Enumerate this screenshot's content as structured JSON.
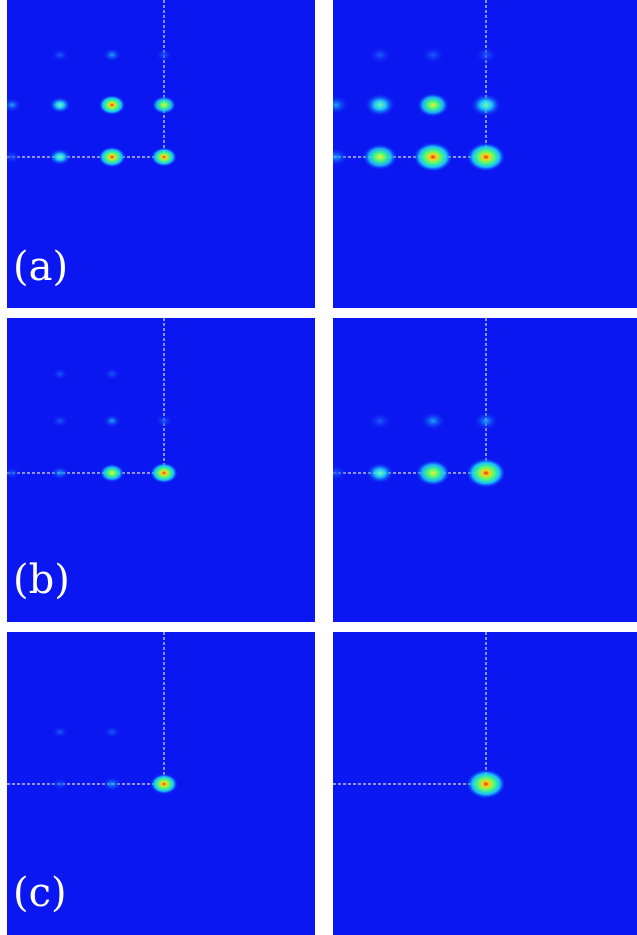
{
  "figure": {
    "background_color": "#0a17f0",
    "guide_line_color": "#e0e0e0",
    "rows": [
      {
        "label": "(a)",
        "left": {
          "spots": [
            {
              "col": 0,
              "row": 0,
              "intensity": 0.22
            },
            {
              "col": 1,
              "row": 0,
              "intensity": 0.28
            },
            {
              "col": 2,
              "row": 0,
              "intensity": 0.15
            },
            {
              "col": -1,
              "row": 1,
              "intensity": 0.3
            },
            {
              "col": 0,
              "row": 1,
              "intensity": 0.5
            },
            {
              "col": 1,
              "row": 1,
              "intensity": 0.92
            },
            {
              "col": 2,
              "row": 1,
              "intensity": 0.7
            },
            {
              "col": -1,
              "row": 2,
              "intensity": 0.2
            },
            {
              "col": 0,
              "row": 2,
              "intensity": 0.55
            },
            {
              "col": 1,
              "row": 2,
              "intensity": 1.0
            },
            {
              "col": 2,
              "row": 2,
              "intensity": 0.85
            }
          ]
        },
        "right": {
          "spots": [
            {
              "col": 0,
              "row": 0,
              "intensity": 0.2
            },
            {
              "col": 1,
              "row": 0,
              "intensity": 0.22
            },
            {
              "col": 2,
              "row": 0,
              "intensity": 0.15
            },
            {
              "col": -1,
              "row": 1,
              "intensity": 0.3
            },
            {
              "col": 0,
              "row": 1,
              "intensity": 0.55
            },
            {
              "col": 1,
              "row": 1,
              "intensity": 0.62
            },
            {
              "col": 2,
              "row": 1,
              "intensity": 0.55
            },
            {
              "col": -1,
              "row": 2,
              "intensity": 0.25
            },
            {
              "col": 0,
              "row": 2,
              "intensity": 0.75
            },
            {
              "col": 1,
              "row": 2,
              "intensity": 1.0
            },
            {
              "col": 2,
              "row": 2,
              "intensity": 0.95
            }
          ]
        }
      },
      {
        "label": "(b)",
        "left": {
          "spots": [
            {
              "col": 0,
              "row": 0,
              "intensity": 0.08
            },
            {
              "col": 1,
              "row": 0,
              "intensity": 0.1
            },
            {
              "col": 0,
              "row": 1,
              "intensity": 0.18
            },
            {
              "col": 1,
              "row": 1,
              "intensity": 0.25
            },
            {
              "col": 2,
              "row": 1,
              "intensity": 0.2
            },
            {
              "col": -1,
              "row": 2,
              "intensity": 0.1
            },
            {
              "col": 0,
              "row": 2,
              "intensity": 0.25
            },
            {
              "col": 1,
              "row": 2,
              "intensity": 0.75
            },
            {
              "col": 2,
              "row": 2,
              "intensity": 1.0
            }
          ]
        },
        "right": {
          "spots": [
            {
              "col": 0,
              "row": 1,
              "intensity": 0.22
            },
            {
              "col": 1,
              "row": 1,
              "intensity": 0.3
            },
            {
              "col": 2,
              "row": 1,
              "intensity": 0.25
            },
            {
              "col": -1,
              "row": 2,
              "intensity": 0.12
            },
            {
              "col": 0,
              "row": 2,
              "intensity": 0.4
            },
            {
              "col": 1,
              "row": 2,
              "intensity": 0.75
            },
            {
              "col": 2,
              "row": 2,
              "intensity": 1.0
            }
          ]
        }
      },
      {
        "label": "(c)",
        "left": {
          "spots": [
            {
              "col": 0,
              "row": 1,
              "intensity": 0.08
            },
            {
              "col": 1,
              "row": 1,
              "intensity": 0.18
            },
            {
              "col": 0,
              "row": 2,
              "intensity": 0.1
            },
            {
              "col": 1,
              "row": 2,
              "intensity": 0.3
            },
            {
              "col": 2,
              "row": 2,
              "intensity": 1.0
            }
          ]
        },
        "right": {
          "spots": [
            {
              "col": 2,
              "row": 2,
              "intensity": 1.0
            }
          ]
        }
      }
    ]
  }
}
